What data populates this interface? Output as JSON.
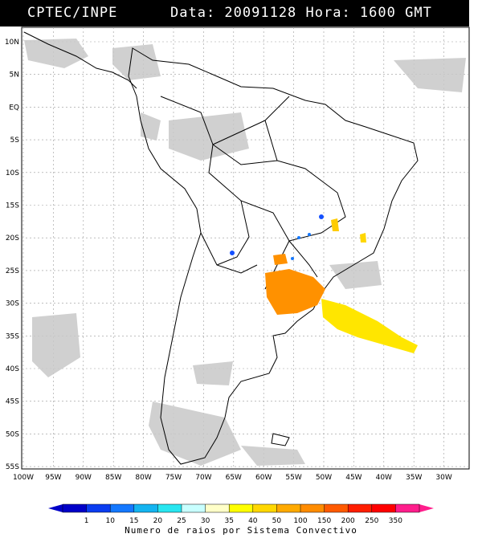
{
  "header": {
    "source": "CPTEC/INPE",
    "date_time": "Data: 20091128 Hora: 1600 GMT"
  },
  "map": {
    "lat_labels": [
      "10N",
      "5N",
      "EQ",
      "5S",
      "10S",
      "15S",
      "20S",
      "25S",
      "30S",
      "35S",
      "40S",
      "45S",
      "50S",
      "55S"
    ],
    "lon_labels": [
      "100W",
      "95W",
      "90W",
      "85W",
      "80W",
      "75W",
      "70W",
      "65W",
      "60W",
      "55W",
      "50W",
      "45W",
      "40W",
      "35W",
      "30W"
    ],
    "grid": true
  },
  "colorbar": {
    "ticks": [
      "1",
      "10",
      "15",
      "20",
      "25",
      "30",
      "35",
      "40",
      "50",
      "100",
      "150",
      "200",
      "250",
      "350"
    ],
    "colors": [
      "#0000c8",
      "#0a3cf0",
      "#1478ff",
      "#14b4f0",
      "#28e6f0",
      "#c8ffff",
      "#ffffc8",
      "#ffff00",
      "#ffd700",
      "#ffaa00",
      "#ff8c00",
      "#ff5a00",
      "#ff1e00",
      "#ff0000",
      "#ff1e8c"
    ],
    "title": "Numero de raios por Sistema Convectivo"
  }
}
